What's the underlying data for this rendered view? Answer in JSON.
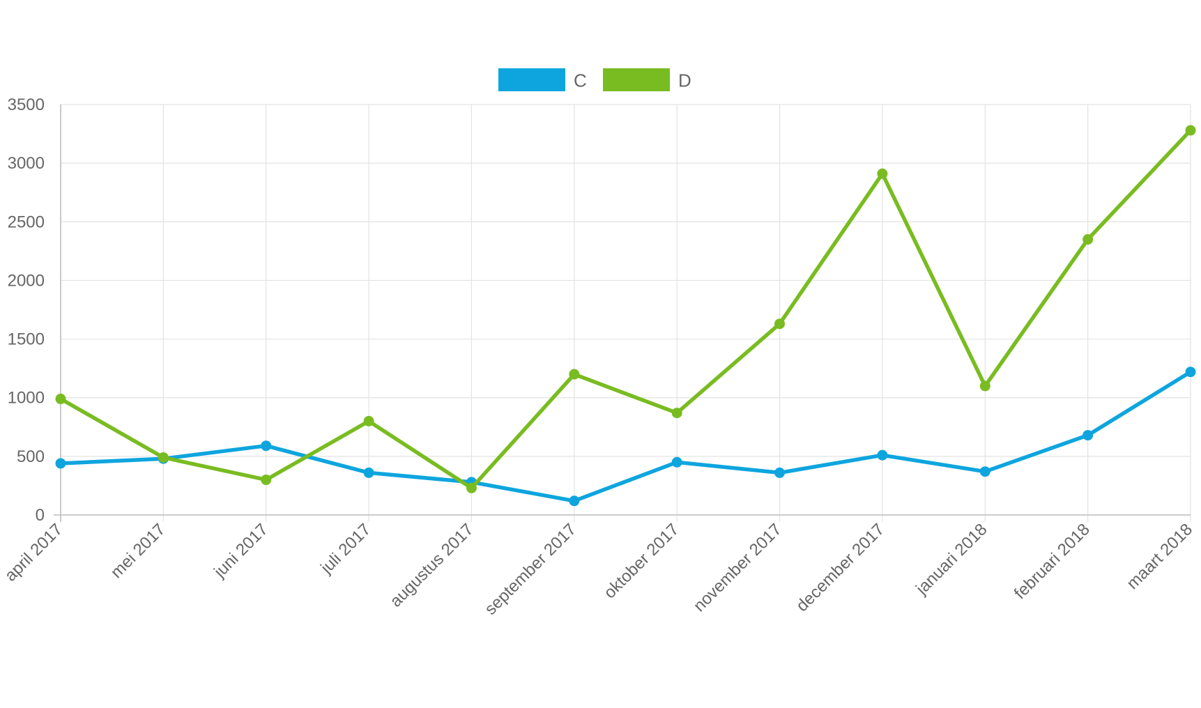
{
  "chart_data": {
    "type": "line",
    "title": "",
    "xlabel": "",
    "ylabel": "",
    "categories": [
      "april 2017",
      "mei 2017",
      "juni 2017",
      "juli 2017",
      "augustus 2017",
      "september 2017",
      "oktober 2017",
      "november 2017",
      "december 2017",
      "januari 2018",
      "februari 2018",
      "maart 2018"
    ],
    "ylim": [
      0,
      3500
    ],
    "yticks": [
      0,
      500,
      1000,
      1500,
      2000,
      2500,
      3000,
      3500
    ],
    "grid": true,
    "legend_position": "top-center",
    "series": [
      {
        "name": "C",
        "color": "#0ea5de",
        "values": [
          440,
          480,
          590,
          360,
          280,
          120,
          450,
          360,
          510,
          370,
          680,
          1220
        ]
      },
      {
        "name": "D",
        "color": "#79bc21",
        "values": [
          990,
          490,
          300,
          800,
          230,
          1200,
          870,
          1630,
          2910,
          1100,
          2350,
          3280
        ]
      }
    ]
  }
}
